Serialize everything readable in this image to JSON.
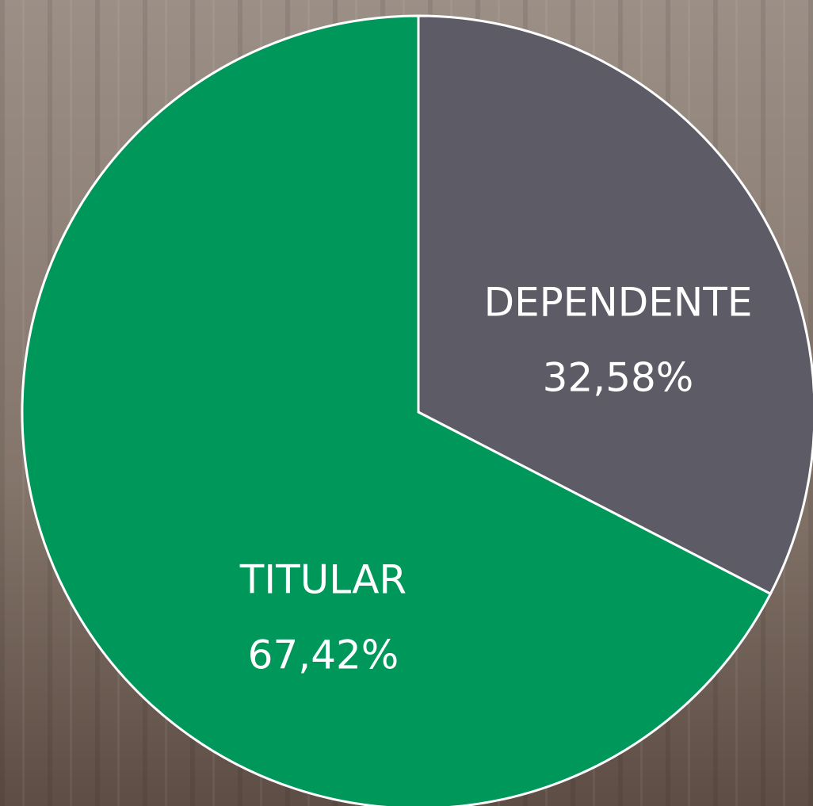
{
  "chart_data": {
    "type": "pie",
    "categories": [
      "DEPENDENTE",
      "TITULAR"
    ],
    "values": [
      32.58,
      67.42
    ],
    "value_labels": [
      "32,58%",
      "67,42%"
    ],
    "colors": [
      "#5d5c66",
      "#00975a"
    ]
  }
}
